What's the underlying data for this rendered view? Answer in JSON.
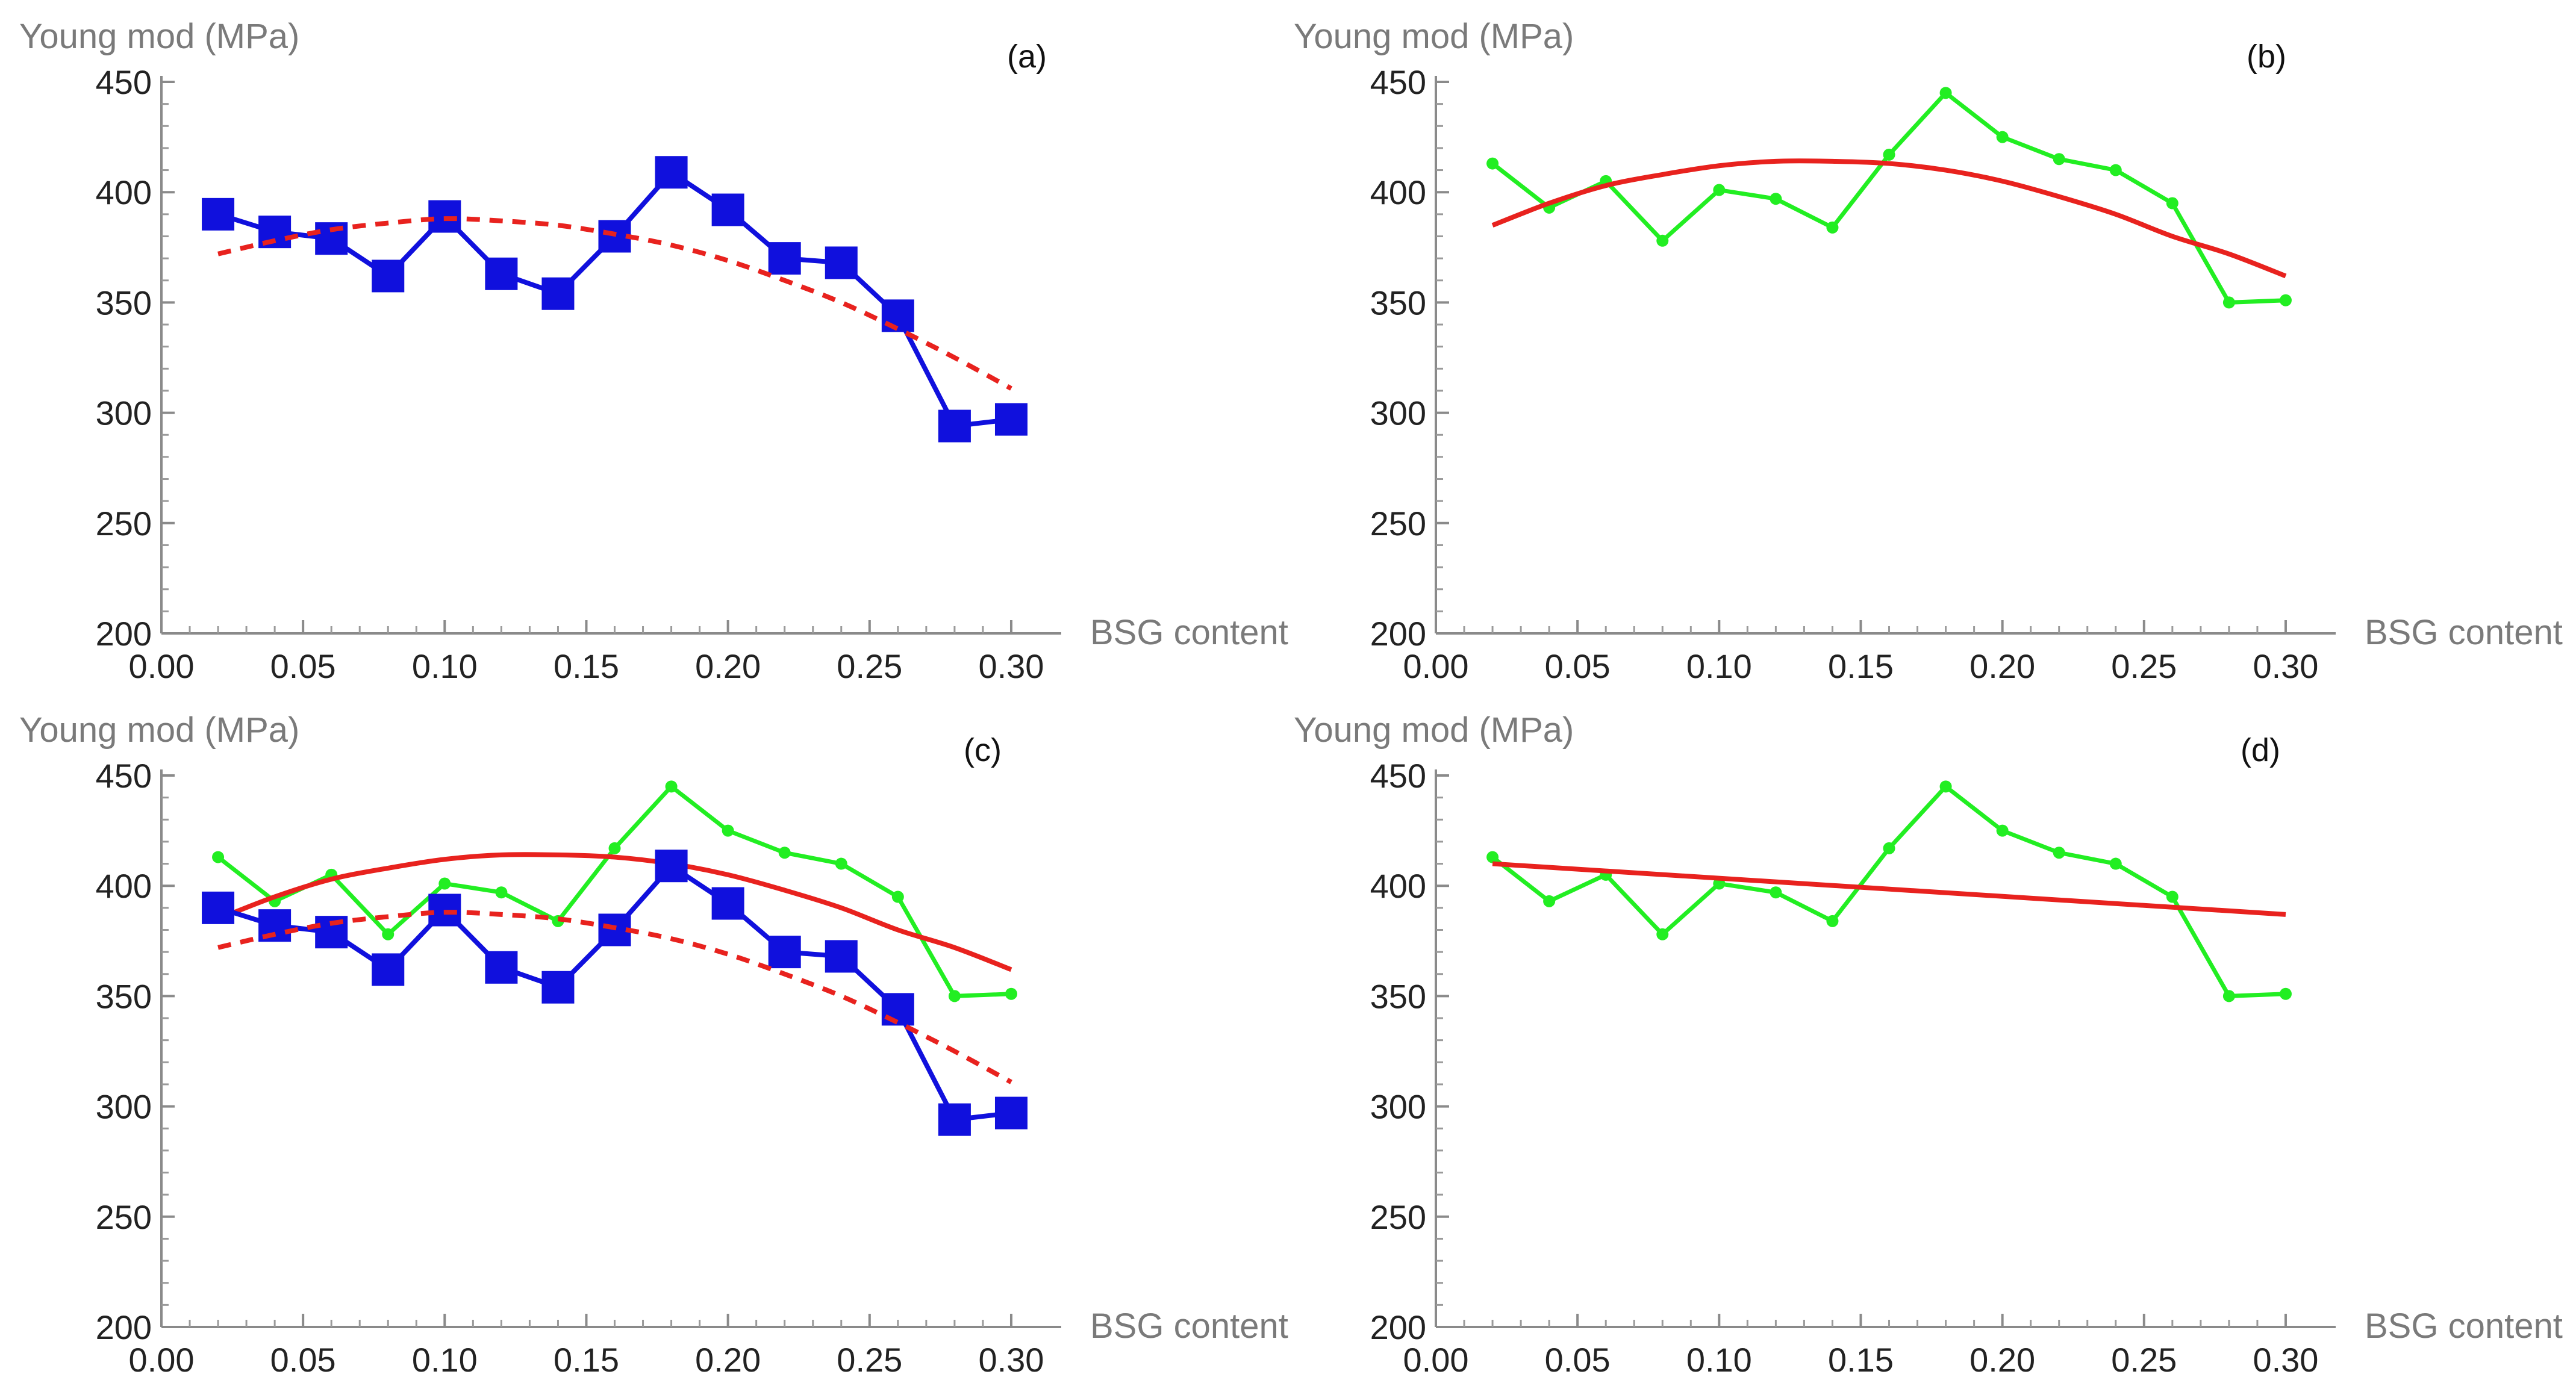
{
  "figure": {
    "panels": [
      {
        "label": "(a)",
        "ytitle": "Young mod (MPa)",
        "xtitle": "BSG content"
      },
      {
        "label": "(b)",
        "ytitle": "Young mod (MPa)",
        "xtitle": "BSG content"
      },
      {
        "label": "(c)",
        "ytitle": "Young mod (MPa)",
        "xtitle": "BSG content"
      },
      {
        "label": "(d)",
        "ytitle": "Young mod (MPa)",
        "xtitle": "BSG content"
      }
    ]
  },
  "chart_data": [
    {
      "type": "line",
      "label": "(a)",
      "xlabel": "BSG content",
      "ylabel": "Young mod (MPa)",
      "xlim": [
        0,
        0.31
      ],
      "ylim": [
        200,
        450
      ],
      "xticks": [
        "0.00",
        "0.05",
        "0.10",
        "0.15",
        "0.20",
        "0.25",
        "0.30"
      ],
      "yticks": [
        "200",
        "250",
        "300",
        "350",
        "400",
        "450"
      ],
      "x": [
        0.02,
        0.04,
        0.06,
        0.08,
        0.1,
        0.12,
        0.14,
        0.16,
        0.18,
        0.2,
        0.22,
        0.24,
        0.26,
        0.28,
        0.3
      ],
      "series": [
        {
          "name": "blue data",
          "style": "square-marker",
          "color": "#1010dd",
          "values": [
            390,
            382,
            379,
            362,
            389,
            363,
            354,
            380,
            409,
            392,
            370,
            368,
            344,
            294,
            297
          ]
        },
        {
          "name": "red dashed fit",
          "style": "dashed",
          "color": "#e8221e",
          "x": [
            0.02,
            0.04,
            0.06,
            0.08,
            0.1,
            0.12,
            0.14,
            0.16,
            0.18,
            0.2,
            0.22,
            0.24,
            0.26,
            0.28,
            0.3
          ],
          "values": [
            372,
            378,
            383,
            386,
            388,
            387,
            385,
            381,
            376,
            369,
            360,
            350,
            338,
            325,
            311
          ]
        }
      ]
    },
    {
      "type": "line",
      "label": "(b)",
      "xlabel": "BSG content",
      "ylabel": "Young mod (MPa)",
      "xlim": [
        0,
        0.31
      ],
      "ylim": [
        200,
        450
      ],
      "xticks": [
        "0.00",
        "0.05",
        "0.10",
        "0.15",
        "0.20",
        "0.25",
        "0.30"
      ],
      "yticks": [
        "200",
        "250",
        "300",
        "350",
        "400",
        "450"
      ],
      "x": [
        0.02,
        0.04,
        0.06,
        0.08,
        0.1,
        0.12,
        0.14,
        0.16,
        0.18,
        0.2,
        0.22,
        0.24,
        0.26,
        0.28,
        0.3
      ],
      "series": [
        {
          "name": "green data",
          "style": "dot-marker",
          "color": "#22ee22",
          "values": [
            413,
            393,
            405,
            378,
            401,
            397,
            384,
            417,
            445,
            425,
            415,
            410,
            395,
            350,
            351
          ]
        },
        {
          "name": "red fit",
          "style": "solid",
          "color": "#e8221e",
          "x": [
            0.02,
            0.04,
            0.06,
            0.08,
            0.1,
            0.12,
            0.14,
            0.16,
            0.18,
            0.2,
            0.22,
            0.24,
            0.26,
            0.28,
            0.3
          ],
          "values": [
            385,
            395,
            403,
            408,
            412,
            414,
            414,
            413,
            410,
            405,
            398,
            390,
            380,
            372,
            362
          ]
        }
      ]
    },
    {
      "type": "line",
      "label": "(c)",
      "xlabel": "BSG content",
      "ylabel": "Young mod (MPa)",
      "xlim": [
        0,
        0.31
      ],
      "ylim": [
        200,
        450
      ],
      "xticks": [
        "0.00",
        "0.05",
        "0.10",
        "0.15",
        "0.20",
        "0.25",
        "0.30"
      ],
      "yticks": [
        "200",
        "250",
        "300",
        "350",
        "400",
        "450"
      ],
      "x": [
        0.02,
        0.04,
        0.06,
        0.08,
        0.1,
        0.12,
        0.14,
        0.16,
        0.18,
        0.2,
        0.22,
        0.24,
        0.26,
        0.28,
        0.3
      ],
      "series": [
        {
          "name": "green data",
          "style": "dot-marker",
          "color": "#22ee22",
          "values": [
            413,
            393,
            405,
            378,
            401,
            397,
            384,
            417,
            445,
            425,
            415,
            410,
            395,
            350,
            351
          ]
        },
        {
          "name": "red fit",
          "style": "solid",
          "color": "#e8221e",
          "x": [
            0.02,
            0.04,
            0.06,
            0.08,
            0.1,
            0.12,
            0.14,
            0.16,
            0.18,
            0.2,
            0.22,
            0.24,
            0.26,
            0.28,
            0.3
          ],
          "values": [
            385,
            395,
            403,
            408,
            412,
            414,
            414,
            413,
            410,
            405,
            398,
            390,
            380,
            372,
            362
          ]
        },
        {
          "name": "blue data",
          "style": "square-marker",
          "color": "#1010dd",
          "values": [
            390,
            382,
            379,
            362,
            389,
            363,
            354,
            380,
            409,
            392,
            370,
            368,
            344,
            294,
            297
          ]
        },
        {
          "name": "red dashed fit",
          "style": "dashed",
          "color": "#e8221e",
          "x": [
            0.02,
            0.04,
            0.06,
            0.08,
            0.1,
            0.12,
            0.14,
            0.16,
            0.18,
            0.2,
            0.22,
            0.24,
            0.26,
            0.28,
            0.3
          ],
          "values": [
            372,
            378,
            383,
            386,
            388,
            387,
            385,
            381,
            376,
            369,
            360,
            350,
            338,
            325,
            311
          ]
        }
      ]
    },
    {
      "type": "line",
      "label": "(d)",
      "xlabel": "BSG content",
      "ylabel": "Young mod (MPa)",
      "xlim": [
        0,
        0.31
      ],
      "ylim": [
        200,
        450
      ],
      "xticks": [
        "0.00",
        "0.05",
        "0.10",
        "0.15",
        "0.20",
        "0.25",
        "0.30"
      ],
      "yticks": [
        "200",
        "250",
        "300",
        "350",
        "400",
        "450"
      ],
      "x": [
        0.02,
        0.04,
        0.06,
        0.08,
        0.1,
        0.12,
        0.14,
        0.16,
        0.18,
        0.2,
        0.22,
        0.24,
        0.26,
        0.28,
        0.3
      ],
      "series": [
        {
          "name": "green data",
          "style": "dot-marker",
          "color": "#22ee22",
          "values": [
            413,
            393,
            405,
            378,
            401,
            397,
            384,
            417,
            445,
            425,
            415,
            410,
            395,
            350,
            351
          ]
        },
        {
          "name": "red linear fit",
          "style": "solid",
          "color": "#e8221e",
          "x": [
            0.02,
            0.3
          ],
          "values": [
            410,
            387
          ]
        }
      ]
    }
  ]
}
